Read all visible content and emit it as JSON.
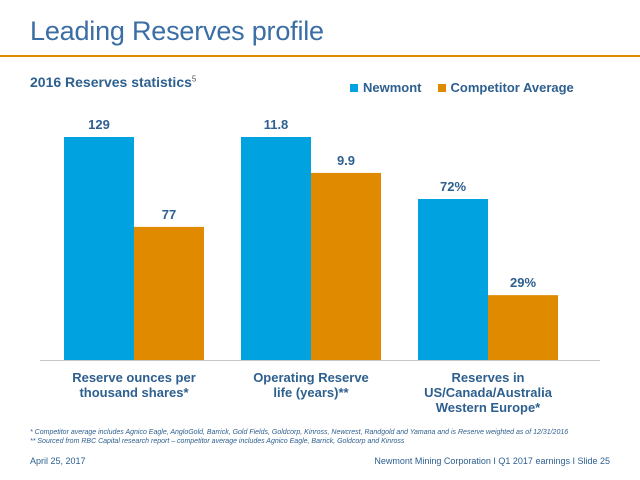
{
  "header": {
    "title": "Leading Reserves profile",
    "subtitle": "2016 Reserves statistics",
    "subtitle_ref": "5"
  },
  "colors": {
    "title": "#3a6ea5",
    "accent_rule": "#e08a00",
    "newmont": "#00a3e0",
    "competitor": "#e08a00",
    "text": "#2d5f8f"
  },
  "chart_data": {
    "type": "bar",
    "title": "2016 Reserves statistics",
    "categories": [
      [
        "Reserve ounces per",
        "thousand shares*"
      ],
      [
        "Operating Reserve",
        "life (years)**"
      ],
      [
        "Reserves in",
        "US/Canada/Australia",
        "Western Europe*"
      ]
    ],
    "series": [
      {
        "name": "Newmont",
        "values": [
          129,
          11.8,
          72
        ],
        "labels": [
          "129",
          "11.8",
          "72%"
        ]
      },
      {
        "name": "Competitor Average",
        "values": [
          77,
          9.9,
          29
        ],
        "labels": [
          "77",
          "9.9",
          "29%"
        ]
      }
    ],
    "group_max": [
      129,
      11.8,
      72
    ],
    "legend_position": "top-right",
    "grid": false
  },
  "footnotes": [
    "* Competitor average includes Agnico Eagle, AngloGold, Barrick, Gold Fields, Goldcorp, Kinross, Newcrest, Randgold and Yamana and is Reserve weighted as of 12/31/2016",
    "** Sourced from RBC Capital research report – competitor average includes Agnico Eagle, Barrick, Goldcorp and Kinross"
  ],
  "footer": {
    "date": "April 25, 2017",
    "source": "Newmont Mining Corporation  I  Q1 2017 earnings  I  Slide 25"
  }
}
